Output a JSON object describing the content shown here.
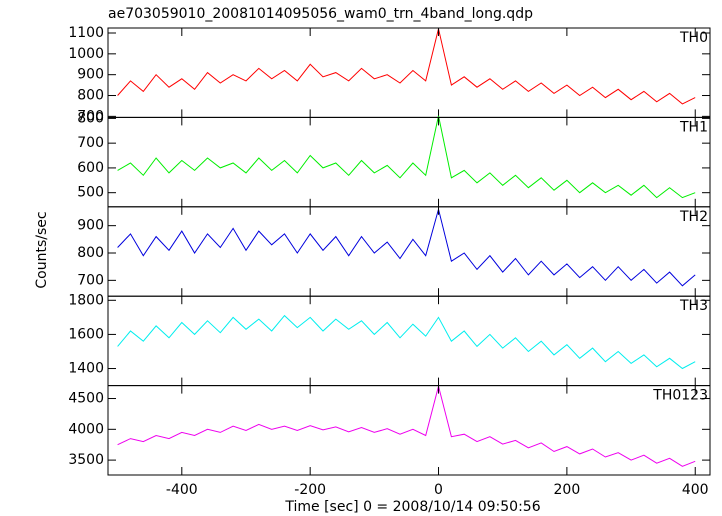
{
  "chart_data": {
    "type": "line",
    "title": "ae703059010_20081014095056_wam0_trn_4band_long.qdp",
    "x_label": "Time [sec] 0 = 2008/10/14 09:50:56",
    "y_label": "Counts/sec",
    "xlim": [
      -515,
      423
    ],
    "xticks": [
      -400,
      -200,
      0,
      200,
      400
    ],
    "x": [
      -500,
      -480,
      -460,
      -440,
      -420,
      -400,
      -380,
      -360,
      -340,
      -320,
      -300,
      -280,
      -260,
      -240,
      -220,
      -200,
      -180,
      -160,
      -140,
      -120,
      -100,
      -80,
      -60,
      -40,
      -20,
      0,
      20,
      40,
      60,
      80,
      100,
      120,
      140,
      160,
      180,
      200,
      220,
      240,
      260,
      280,
      300,
      320,
      340,
      360,
      380,
      400
    ],
    "series": [
      {
        "name": "TH0",
        "color": "#ff0000",
        "ylim": [
          695,
          1124
        ],
        "yticks": [
          700,
          800,
          900,
          1000,
          1100
        ],
        "values": [
          800,
          870,
          820,
          900,
          840,
          880,
          830,
          910,
          860,
          900,
          870,
          930,
          880,
          920,
          870,
          950,
          890,
          910,
          870,
          930,
          880,
          900,
          860,
          920,
          870,
          1120,
          850,
          890,
          840,
          880,
          830,
          870,
          820,
          860,
          810,
          850,
          800,
          840,
          790,
          830,
          780,
          820,
          770,
          810,
          760,
          790
        ]
      },
      {
        "name": "TH1",
        "color": "#00ee00",
        "ylim": [
          443,
          804
        ],
        "yticks": [
          500,
          600,
          700,
          800
        ],
        "values": [
          590,
          620,
          570,
          640,
          580,
          630,
          590,
          640,
          600,
          620,
          580,
          640,
          590,
          630,
          580,
          650,
          600,
          620,
          570,
          630,
          580,
          610,
          560,
          620,
          570,
          810,
          560,
          590,
          540,
          580,
          530,
          570,
          520,
          560,
          510,
          550,
          500,
          540,
          500,
          530,
          490,
          530,
          480,
          520,
          480,
          500
        ]
      },
      {
        "name": "TH2",
        "color": "#0000dd",
        "ylim": [
          642,
          969
        ],
        "yticks": [
          700,
          800,
          900
        ],
        "values": [
          820,
          870,
          790,
          860,
          810,
          880,
          800,
          870,
          820,
          890,
          810,
          880,
          830,
          870,
          800,
          870,
          810,
          860,
          790,
          860,
          800,
          840,
          780,
          850,
          790,
          960,
          770,
          800,
          740,
          790,
          730,
          780,
          720,
          770,
          720,
          760,
          710,
          750,
          700,
          750,
          700,
          740,
          690,
          730,
          680,
          720
        ]
      },
      {
        "name": "TH3",
        "color": "#00eeee",
        "ylim": [
          1300,
          1824
        ],
        "yticks": [
          1400,
          1600,
          1800
        ],
        "values": [
          1530,
          1620,
          1560,
          1650,
          1580,
          1670,
          1600,
          1680,
          1610,
          1700,
          1630,
          1690,
          1620,
          1710,
          1640,
          1700,
          1620,
          1690,
          1630,
          1680,
          1600,
          1670,
          1580,
          1660,
          1590,
          1700,
          1560,
          1620,
          1530,
          1600,
          1520,
          1580,
          1500,
          1560,
          1480,
          1540,
          1460,
          1520,
          1440,
          1500,
          1430,
          1480,
          1410,
          1460,
          1400,
          1440
        ]
      },
      {
        "name": "TH0123",
        "color": "#ee00ee",
        "ylim": [
          3258,
          4710
        ],
        "yticks": [
          3500,
          4000,
          4500
        ],
        "values": [
          3750,
          3850,
          3800,
          3900,
          3850,
          3950,
          3900,
          4000,
          3950,
          4050,
          3980,
          4080,
          4000,
          4050,
          3980,
          4060,
          3990,
          4040,
          3960,
          4030,
          3950,
          4010,
          3920,
          4000,
          3900,
          4700,
          3880,
          3920,
          3800,
          3880,
          3760,
          3820,
          3700,
          3780,
          3640,
          3720,
          3600,
          3680,
          3550,
          3620,
          3500,
          3580,
          3450,
          3530,
          3400,
          3480
        ]
      }
    ]
  }
}
